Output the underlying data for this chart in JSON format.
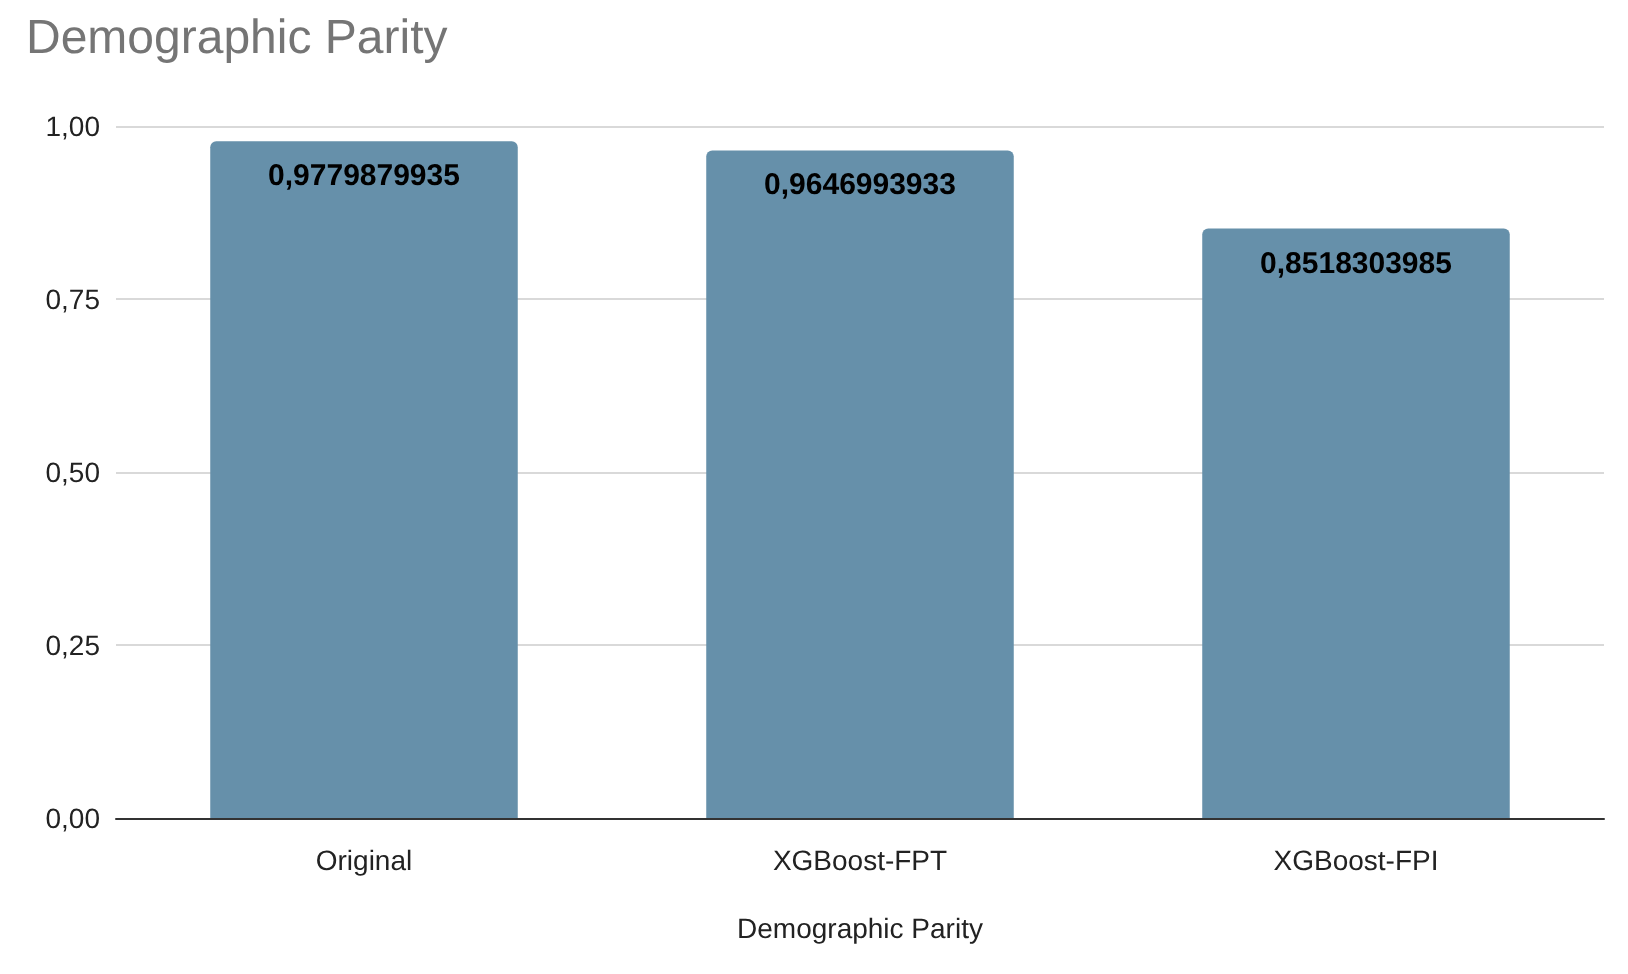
{
  "chart_data": {
    "type": "bar",
    "title": "Demographic Parity",
    "xlabel": "Demographic Parity",
    "categories": [
      "Original",
      "XGBoost-FPT",
      "XGBoost-FPI"
    ],
    "values": [
      0.9779879935,
      0.9646993933,
      0.8518303985
    ],
    "value_labels": [
      "0,9779879935",
      "0,9646993933",
      "0,8518303985"
    ],
    "color": "#6690aa",
    "ylim": [
      0,
      1
    ],
    "yticks": [
      {
        "value": 0,
        "label": "0,00"
      },
      {
        "value": 0.25,
        "label": "0,25"
      },
      {
        "value": 0.5,
        "label": "0,50"
      },
      {
        "value": 0.75,
        "label": "0,75"
      },
      {
        "value": 1,
        "label": "1,00"
      }
    ],
    "grid": "y"
  }
}
